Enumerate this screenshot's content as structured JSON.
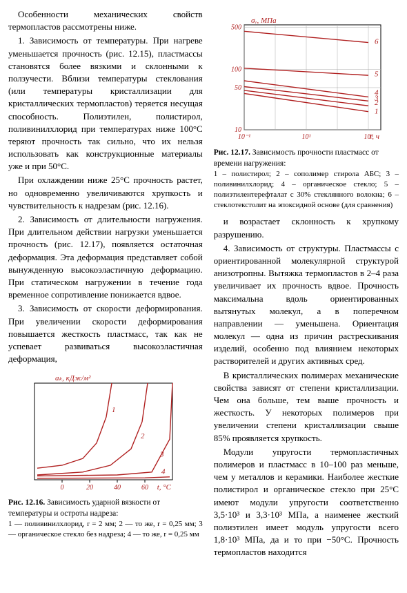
{
  "col_left": {
    "p1": "Особенности механических свойств термопластов рассмотрены ниже.",
    "p2": "1. Зависимость от температуры. При нагреве уменьшается прочность (рис. 12.15), пластмассы становятся более вязкими и склонными к ползучести. Вблизи температуры стеклования (или температуры кристаллизации для кристаллических термопластов) теряется несущая способность. Полиэтилен, полистирол, поливинилхлорид при температурах ниже 100°C теряют прочность так сильно, что их нельзя использовать как конструкционные материалы уже и при 50°C.",
    "p3": "При охлаждении ниже 25°C прочность растет, но одновременно увеличиваются хрупкость и чувствительность к надрезам (рис. 12.16).",
    "p4": "2. Зависимость от длительности нагружения. При длительном действии нагрузки уменьшается прочность (рис. 12.17), появляется остаточная деформация. Эта деформация представляет собой вынужденную высокоэластичную деформацию. При статическом нагружении в течение года временное сопротивление понижается вдвое.",
    "p5": "3. Зависимость от скорости деформирования. При увеличении скорости деформирования повышается жесткость пластмасс, так как не успевает развиваться высокоэластичная деформация,"
  },
  "col_right": {
    "p1": "и возрастает склонность к хрупкому разрушению.",
    "p2": "4. Зависимость от структуры. Пластмассы с ориентированной молекулярной структурой анизотропны. Вытяжка термопластов в 2–4 раза увеличивает их прочность вдвое. Прочность максимальна вдоль ориентированных вытянутых молекул, а в поперечном направлении — уменьшена. Ориентация молекул — одна из причин растрескивания изделий, особенно под влиянием некоторых растворителей и других активных сред.",
    "p3": "В кристаллических полимерах механические свойства зависят от степени кристаллизации. Чем она больше, тем выше прочность и жесткость. У некоторых полимеров при увеличении степени кристаллизации свыше 85% проявляется хрупкость.",
    "p4": "Модули упругости термопластичных полимеров и пластмасс в 10–100 раз меньше, чем у металлов и керамики. Наиболее жесткие полистирол и органическое стекло при 25°C имеют модули упругости соответственно 3,5·10³ и 3,3·10³ МПа, а наименее жесткий полиэтилен имеет модуль упругости всего 1,8·10³ МПа, да и то при −50°C. Прочность термопластов находится"
  },
  "fig1216": {
    "title_bold": "Рис. 12.16.",
    "title_rest": " Зависимость ударной вязкости от температуры и остроты надреза:",
    "legend": "1 — поливинилхлорид, r = 2 мм; 2 — то же, r = 0,25 мм; 3 — органическое стекло без надреза; 4 — то же, r = 0,25 мм",
    "axes": {
      "ylabel": "aₖ, кДж/м²",
      "xlabel": "t, °C",
      "xmin": -20,
      "xmax": 80,
      "xticks": [
        0,
        20,
        40,
        60
      ],
      "ymin": 0,
      "ymax": 10,
      "grid_color": "#888"
    },
    "series_color": "#b02020",
    "curves": {
      "1": [
        [
          -18,
          1.2
        ],
        [
          0,
          1.5
        ],
        [
          15,
          2.2
        ],
        [
          25,
          3.8
        ],
        [
          32,
          6.5
        ],
        [
          36,
          10
        ]
      ],
      "2": [
        [
          -18,
          0.5
        ],
        [
          15,
          0.8
        ],
        [
          35,
          1.5
        ],
        [
          50,
          3.2
        ],
        [
          58,
          6
        ],
        [
          62,
          10
        ]
      ],
      "3": [
        [
          -18,
          0.4
        ],
        [
          40,
          0.5
        ],
        [
          65,
          0.8
        ],
        [
          78,
          4.2
        ],
        [
          80,
          10
        ]
      ],
      "4": [
        [
          -18,
          0.15
        ],
        [
          60,
          0.2
        ],
        [
          78,
          0.3
        ]
      ]
    },
    "label_positions": {
      "1": [
        34,
        7
      ],
      "2": [
        55,
        4.3
      ],
      "3": [
        69,
        2.4
      ],
      "4": [
        70,
        0.6
      ]
    }
  },
  "fig1217": {
    "title_bold": "Рис. 12.17.",
    "title_rest": " Зависимость прочности пластмасс от времени нагружения:",
    "legend": "1 – полистирол; 2 – сополимер стирола АБС; 3 – поливинилхлорид; 4 – органическое стекло; 5 – полиэтилентерефталат с 30% стеклянного волокна; 6 – стеклотекстолит на эпоксидной основе (для сравнения)",
    "axes": {
      "ylabel": "σᵥ, МПа",
      "xlabel": "τ, ч",
      "xticks_log": [
        -1,
        0,
        1,
        2,
        3
      ],
      "xtick_labels": [
        "10⁻¹",
        "",
        "10¹",
        "",
        "10³"
      ],
      "yticks": [
        10,
        50,
        100,
        500
      ],
      "grid_color": "#888"
    },
    "series_color": "#b02020",
    "curves": {
      "1": [
        [
          -1,
          40
        ],
        [
          3,
          20
        ]
      ],
      "2": [
        [
          -1,
          45
        ],
        [
          3,
          25
        ]
      ],
      "3": [
        [
          -1,
          52
        ],
        [
          3,
          30
        ]
      ],
      "4": [
        [
          -1,
          65
        ],
        [
          3,
          35
        ]
      ],
      "5": [
        [
          -1,
          105
        ],
        [
          3,
          80
        ]
      ],
      "6": [
        [
          -1,
          430
        ],
        [
          3,
          280
        ]
      ]
    },
    "label_positions": {
      "1": [
        3.2,
        20
      ],
      "2": [
        3.2,
        28
      ],
      "3": [
        3.2,
        33
      ],
      "4": [
        3.2,
        41
      ],
      "5": [
        3.2,
        84
      ],
      "6": [
        3.2,
        290
      ]
    }
  }
}
